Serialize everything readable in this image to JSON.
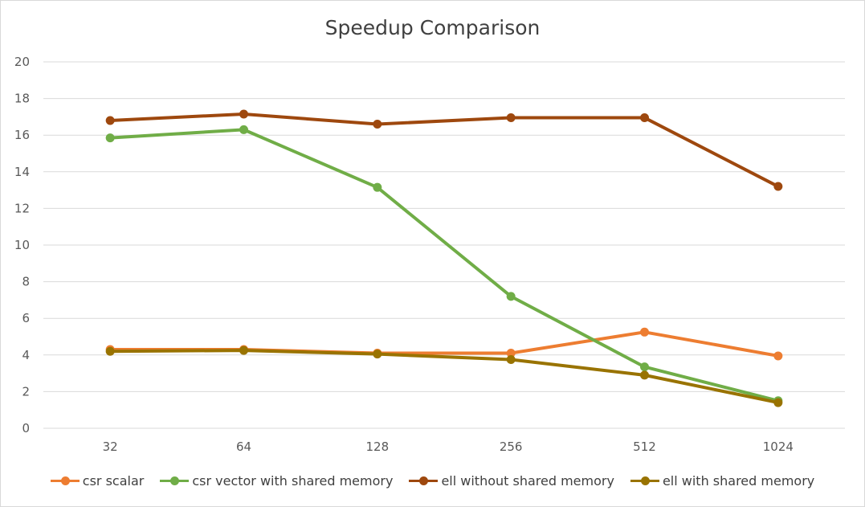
{
  "chart_data": {
    "type": "line",
    "title": "Speedup Comparison",
    "xlabel": "",
    "ylabel": "",
    "categories": [
      "32",
      "64",
      "128",
      "256",
      "512",
      "1024"
    ],
    "ylim": [
      0,
      20
    ],
    "yticks": [
      0,
      2,
      4,
      6,
      8,
      10,
      12,
      14,
      16,
      18,
      20
    ],
    "grid": true,
    "legend_position": "bottom",
    "series": [
      {
        "name": "csr scalar",
        "color": "#ed7d31",
        "values": [
          4.3,
          4.3,
          4.1,
          4.1,
          5.25,
          3.95
        ]
      },
      {
        "name": "csr vector with shared memory",
        "color": "#70ad47",
        "values": [
          15.85,
          16.3,
          13.15,
          7.2,
          3.35,
          1.5
        ]
      },
      {
        "name": "ell without shared memory",
        "color": "#9e480e",
        "values": [
          16.8,
          17.15,
          16.6,
          16.95,
          16.95,
          13.2
        ]
      },
      {
        "name": "ell with shared memory",
        "color": "#997300",
        "values": [
          4.2,
          4.25,
          4.05,
          3.75,
          2.9,
          1.4
        ]
      }
    ]
  }
}
